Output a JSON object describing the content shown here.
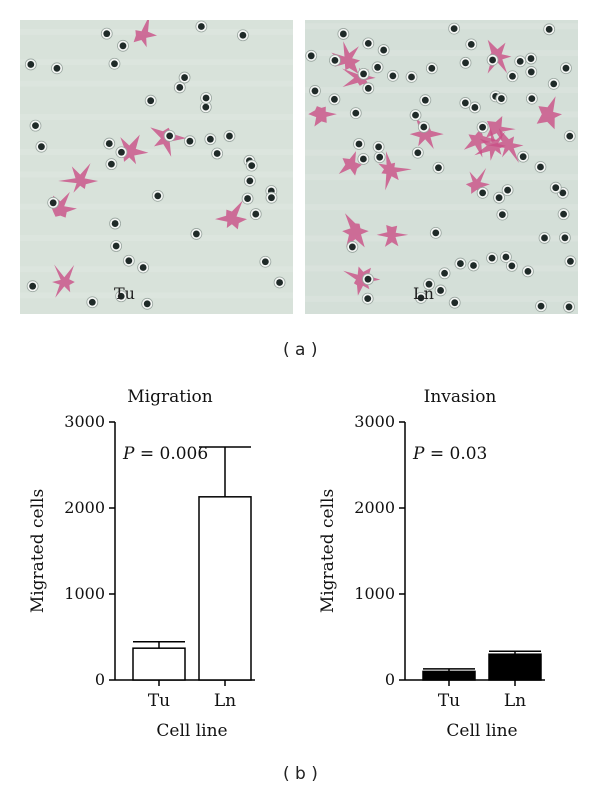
{
  "panel_a": {
    "label": "( a )",
    "images": [
      {
        "caption": "Tu",
        "caption_color": "#c0304a",
        "background": "#d8e2da"
      },
      {
        "caption": "Ln",
        "caption_color": "#2aa050",
        "background": "#d4dfd8"
      }
    ]
  },
  "panel_b": {
    "label": "( b )"
  },
  "colors": {
    "stain": "#c94f86",
    "cell": "#1f2a28",
    "white_bar": "#ffffff",
    "black_bar": "#000000"
  },
  "chart_data": [
    {
      "type": "bar",
      "title": "Migration",
      "xlabel": "Cell line",
      "ylabel": "Migrated cells",
      "categories": [
        "Tu",
        "Ln"
      ],
      "values": [
        370,
        2130
      ],
      "errors": [
        75,
        580
      ],
      "ylim": [
        0,
        3000
      ],
      "yticks": [
        "0",
        "1000",
        "2000",
        "3000"
      ],
      "bar_fill": "white",
      "annotation": {
        "p": "P",
        "text": " = 0.006"
      }
    },
    {
      "type": "bar",
      "title": "Invasion",
      "xlabel": "Cell line",
      "ylabel": "Migrated cells",
      "categories": [
        "Tu",
        "Ln"
      ],
      "values": [
        100,
        300
      ],
      "errors": [
        30,
        35
      ],
      "ylim": [
        0,
        3000
      ],
      "yticks": [
        "0",
        "1000",
        "2000",
        "3000"
      ],
      "bar_fill": "black",
      "annotation": {
        "p": "P",
        "text": " = 0.03"
      }
    }
  ]
}
